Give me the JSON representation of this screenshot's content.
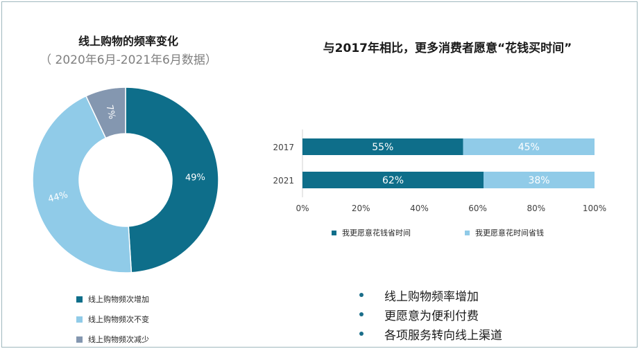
{
  "colors": {
    "dark": "#0e6e8a",
    "light": "#90cbe8",
    "gray": "#8497b0"
  },
  "donut": {
    "title": "线上购物的频率变化",
    "subtitle": "（ 2020年6月-2021年6月数据）"
  },
  "bar": {
    "title": "与2017年相比，更多消费者愿意“花钱买时间”"
  },
  "chart_data": [
    {
      "type": "pie",
      "categories": [
        "线上购物频次增加",
        "线上购物频次不变",
        "线上购物频次减少"
      ],
      "values": [
        49,
        44,
        7
      ],
      "labels": [
        "49%",
        "44%",
        "7%"
      ],
      "legend_position": "bottom"
    },
    {
      "type": "bar",
      "orientation": "horizontal",
      "stacked": true,
      "categories": [
        "2017",
        "2021"
      ],
      "series": [
        {
          "name": "我更愿意花钱省时间",
          "values": [
            55,
            62
          ],
          "labels": [
            "55%",
            "62%"
          ]
        },
        {
          "name": "我更愿意花时间省钱",
          "values": [
            45,
            38
          ],
          "labels": [
            "45%",
            "38%"
          ]
        }
      ],
      "xlim": [
        0,
        100
      ],
      "xticks": [
        "0%",
        "20%",
        "40%",
        "60%",
        "80%",
        "100%"
      ],
      "legend_position": "bottom"
    }
  ],
  "bullets": [
    "线上购物频率增加",
    "更愿意为便利付费",
    "各项服务转向线上渠道"
  ]
}
